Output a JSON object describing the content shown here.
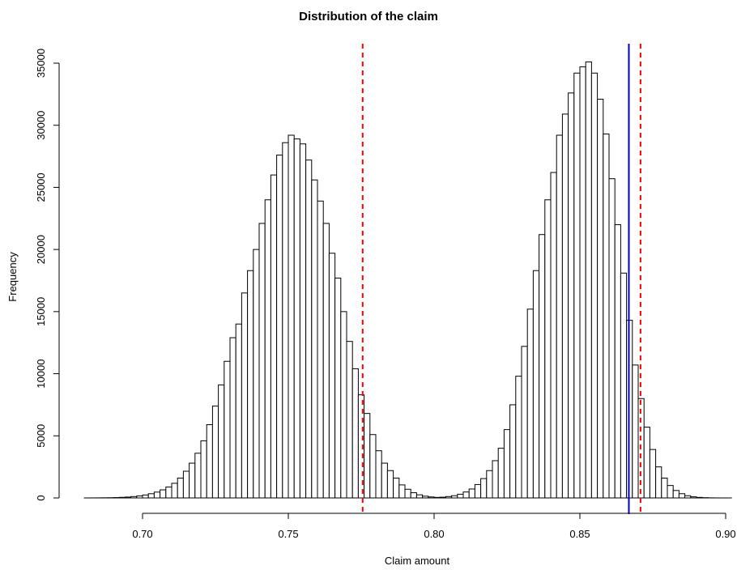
{
  "chart_data": {
    "type": "bar",
    "title": "Distribution of the claim",
    "xlabel": "Claim amount",
    "ylabel": "Frequency",
    "xlim": [
      0.68,
      0.902
    ],
    "ylim": [
      0,
      35000
    ],
    "x_ticks": [
      "0.70",
      "0.75",
      "0.80",
      "0.85",
      "0.90"
    ],
    "x_tick_values": [
      0.7,
      0.75,
      0.8,
      0.85,
      0.9
    ],
    "y_ticks": [
      "0",
      "5000",
      "10000",
      "15000",
      "20000",
      "25000",
      "30000",
      "35000"
    ],
    "y_tick_values": [
      0,
      5000,
      10000,
      15000,
      20000,
      25000,
      30000,
      35000
    ],
    "bin_width": 0.002,
    "bin_start": 0.68,
    "frequencies": [
      2,
      4,
      7,
      12,
      18,
      30,
      48,
      70,
      110,
      160,
      240,
      340,
      470,
      650,
      880,
      1180,
      1600,
      2150,
      2800,
      3600,
      4600,
      5900,
      7400,
      9100,
      11000,
      12900,
      14000,
      16500,
      18300,
      20000,
      22100,
      24000,
      26000,
      27600,
      28600,
      29200,
      28900,
      28500,
      27200,
      25600,
      23900,
      22100,
      19700,
      17700,
      15000,
      12600,
      10400,
      8300,
      6800,
      5100,
      3800,
      2800,
      2200,
      1600,
      1050,
      700,
      420,
      250,
      140,
      80,
      45,
      60,
      110,
      180,
      300,
      480,
      720,
      1080,
      1560,
      2200,
      3000,
      4000,
      5500,
      7500,
      9800,
      12200,
      15200,
      18300,
      21200,
      24000,
      26200,
      29200,
      30900,
      32600,
      34200,
      34700,
      35100,
      34200,
      32100,
      29300,
      25700,
      22000,
      18100,
      14300,
      10700,
      8000,
      5700,
      3900,
      2500,
      1600,
      1000,
      600,
      340,
      180,
      90,
      45,
      20,
      8,
      3,
      1,
      1
    ],
    "reference_lines": [
      {
        "x": 0.7755,
        "color": "#ff0000",
        "style": "dashed"
      },
      {
        "x": 0.8708,
        "color": "#ff0000",
        "style": "dashed"
      },
      {
        "x": 0.8668,
        "color": "#0000cc",
        "style": "solid"
      }
    ],
    "bar_fill": "#ffffff",
    "bar_stroke": "#000000",
    "grid": false,
    "legend": "none"
  }
}
